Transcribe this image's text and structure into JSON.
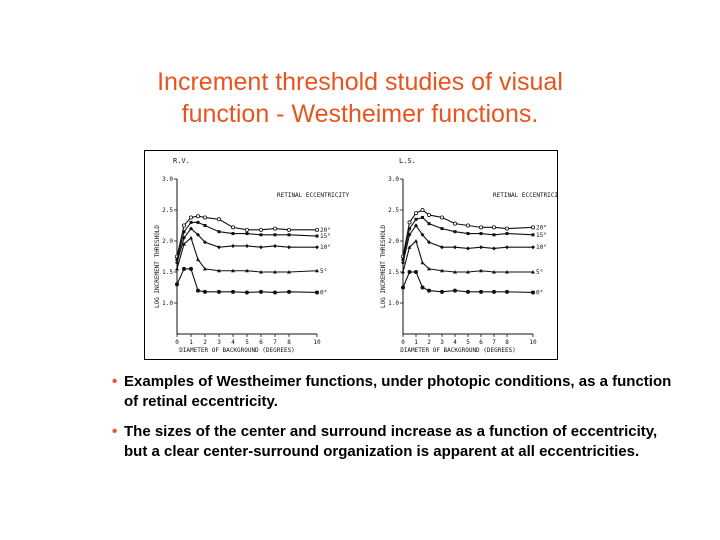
{
  "slide": {
    "title_line1": "Increment threshold studies of visual",
    "title_line2": "function - Westheimer functions.",
    "bullets": [
      "Examples of Westheimer functions, under photopic conditions, as a function of retinal eccentricity.",
      "The sizes of the center and surround increase as a function of eccentricity, but a clear center-surround organization is apparent at all eccentricities."
    ],
    "bullet_symbol": "•",
    "accent_color": "#e8541e"
  },
  "chart_data": [
    {
      "type": "line",
      "subject": "R.V.",
      "ylabel": "LOG INCREMENT THRESHOLD",
      "xlabel": "DIAMETER OF BACKGROUND (DEGREES)",
      "x_ticks": [
        "0",
        "1",
        "2",
        "3",
        "4",
        "5",
        "6",
        "7",
        "8",
        "10"
      ],
      "y_ticks": [
        "1.0",
        "1.5",
        "2.0",
        "2.5",
        "3.0"
      ],
      "legend_title": "RETINAL ECCENTRICITY",
      "legend_items": [
        "20°",
        "15°",
        "10°",
        "5°",
        "0°"
      ],
      "x": [
        0,
        0.5,
        1,
        1.5,
        2,
        3,
        4,
        5,
        6,
        7,
        8,
        10
      ],
      "series": [
        {
          "name": "20°",
          "values": [
            1.75,
            2.25,
            2.38,
            2.4,
            2.38,
            2.35,
            2.22,
            2.18,
            2.18,
            2.2,
            2.18,
            2.18
          ]
        },
        {
          "name": "15°",
          "values": [
            1.7,
            2.15,
            2.3,
            2.3,
            2.25,
            2.15,
            2.12,
            2.12,
            2.1,
            2.1,
            2.1,
            2.08
          ]
        },
        {
          "name": "10°",
          "values": [
            1.65,
            2.05,
            2.2,
            2.1,
            1.98,
            1.9,
            1.92,
            1.92,
            1.9,
            1.92,
            1.9,
            1.9
          ]
        },
        {
          "name": "5°",
          "values": [
            1.55,
            1.95,
            2.05,
            1.7,
            1.55,
            1.52,
            1.52,
            1.52,
            1.5,
            1.5,
            1.5,
            1.52
          ]
        },
        {
          "name": "0°",
          "values": [
            1.3,
            1.55,
            1.55,
            1.2,
            1.18,
            1.18,
            1.18,
            1.17,
            1.18,
            1.17,
            1.18,
            1.17
          ]
        }
      ],
      "xlim": [
        0,
        10
      ],
      "ylim": [
        0.5,
        3.0
      ]
    },
    {
      "type": "line",
      "subject": "L.S.",
      "ylabel": "LOG INCREMENT THRESHOLD",
      "xlabel": "DIAMETER OF BACKGROUND (DEGREES)",
      "x_ticks": [
        "0",
        "1",
        "2",
        "3",
        "4",
        "5",
        "6",
        "7",
        "8",
        "10"
      ],
      "y_ticks": [
        "1.0",
        "1.5",
        "2.0",
        "2.5",
        "3.0"
      ],
      "legend_title": "RETINAL ECCENTRICITY",
      "legend_items": [
        "20°",
        "15°",
        "10°",
        "5°",
        "0°"
      ],
      "x": [
        0,
        0.5,
        1,
        1.5,
        2,
        3,
        4,
        5,
        6,
        7,
        8,
        10
      ],
      "series": [
        {
          "name": "20°",
          "values": [
            1.75,
            2.3,
            2.45,
            2.5,
            2.42,
            2.38,
            2.28,
            2.25,
            2.22,
            2.22,
            2.2,
            2.22
          ]
        },
        {
          "name": "15°",
          "values": [
            1.7,
            2.2,
            2.35,
            2.38,
            2.28,
            2.2,
            2.15,
            2.12,
            2.12,
            2.1,
            2.12,
            2.1
          ]
        },
        {
          "name": "10°",
          "values": [
            1.65,
            2.1,
            2.25,
            2.1,
            1.98,
            1.9,
            1.9,
            1.88,
            1.9,
            1.88,
            1.9,
            1.9
          ]
        },
        {
          "name": "5°",
          "values": [
            1.5,
            1.9,
            2.0,
            1.65,
            1.55,
            1.52,
            1.5,
            1.5,
            1.52,
            1.5,
            1.5,
            1.5
          ]
        },
        {
          "name": "0°",
          "values": [
            1.25,
            1.5,
            1.5,
            1.25,
            1.2,
            1.18,
            1.2,
            1.18,
            1.18,
            1.18,
            1.18,
            1.17
          ]
        }
      ],
      "xlim": [
        0,
        10
      ],
      "ylim": [
        0.5,
        3.0
      ]
    }
  ]
}
